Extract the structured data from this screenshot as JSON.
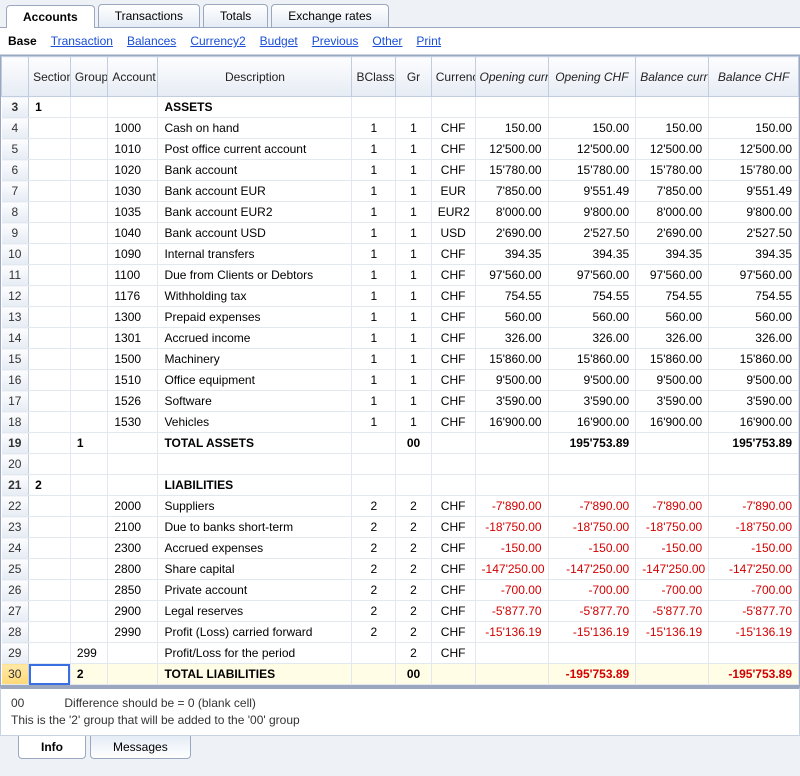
{
  "tabs": {
    "accounts": "Accounts",
    "transactions": "Transactions",
    "totals": "Totals",
    "exchange": "Exchange rates"
  },
  "subbar": {
    "base": "Base",
    "links": {
      "transaction": "Transaction",
      "balances": "Balances",
      "currency2": "Currency2",
      "budget": "Budget",
      "previous": "Previous",
      "other": "Other",
      "print": "Print"
    }
  },
  "columns": {
    "section": "Section",
    "group": "Group",
    "account": "Account",
    "description": "Description",
    "bclass": "BClass",
    "gr": "Gr",
    "currency": "Currency",
    "opening_currency": "Opening currency",
    "opening_chf": "Opening CHF",
    "balance_currency": "Balance currency",
    "balance_chf": "Balance CHF"
  },
  "rows": [
    {
      "n": "3",
      "section": "1",
      "group": "",
      "account": "",
      "desc": "ASSETS",
      "bclass": "",
      "gr": "",
      "cur": "",
      "oc": "",
      "ochf": "",
      "bc": "",
      "bchf": "",
      "bold": true
    },
    {
      "n": "4",
      "section": "",
      "group": "",
      "account": "1000",
      "desc": "Cash on hand",
      "bclass": "1",
      "gr": "1",
      "cur": "CHF",
      "oc": "150.00",
      "ochf": "150.00",
      "bc": "150.00",
      "bchf": "150.00"
    },
    {
      "n": "5",
      "section": "",
      "group": "",
      "account": "1010",
      "desc": "Post office current account",
      "bclass": "1",
      "gr": "1",
      "cur": "CHF",
      "oc": "12'500.00",
      "ochf": "12'500.00",
      "bc": "12'500.00",
      "bchf": "12'500.00"
    },
    {
      "n": "6",
      "section": "",
      "group": "",
      "account": "1020",
      "desc": "Bank account",
      "bclass": "1",
      "gr": "1",
      "cur": "CHF",
      "oc": "15'780.00",
      "ochf": "15'780.00",
      "bc": "15'780.00",
      "bchf": "15'780.00"
    },
    {
      "n": "7",
      "section": "",
      "group": "",
      "account": "1030",
      "desc": "Bank account EUR",
      "bclass": "1",
      "gr": "1",
      "cur": "EUR",
      "oc": "7'850.00",
      "ochf": "9'551.49",
      "bc": "7'850.00",
      "bchf": "9'551.49"
    },
    {
      "n": "8",
      "section": "",
      "group": "",
      "account": "1035",
      "desc": "Bank account EUR2",
      "bclass": "1",
      "gr": "1",
      "cur": "EUR2",
      "oc": "8'000.00",
      "ochf": "9'800.00",
      "bc": "8'000.00",
      "bchf": "9'800.00"
    },
    {
      "n": "9",
      "section": "",
      "group": "",
      "account": "1040",
      "desc": "Bank account USD",
      "bclass": "1",
      "gr": "1",
      "cur": "USD",
      "oc": "2'690.00",
      "ochf": "2'527.50",
      "bc": "2'690.00",
      "bchf": "2'527.50"
    },
    {
      "n": "10",
      "section": "",
      "group": "",
      "account": "1090",
      "desc": "Internal transfers",
      "bclass": "1",
      "gr": "1",
      "cur": "CHF",
      "oc": "394.35",
      "ochf": "394.35",
      "bc": "394.35",
      "bchf": "394.35"
    },
    {
      "n": "11",
      "section": "",
      "group": "",
      "account": "1100",
      "desc": "Due from Clients or Debtors",
      "bclass": "1",
      "gr": "1",
      "cur": "CHF",
      "oc": "97'560.00",
      "ochf": "97'560.00",
      "bc": "97'560.00",
      "bchf": "97'560.00"
    },
    {
      "n": "12",
      "section": "",
      "group": "",
      "account": "1176",
      "desc": "Withholding tax",
      "bclass": "1",
      "gr": "1",
      "cur": "CHF",
      "oc": "754.55",
      "ochf": "754.55",
      "bc": "754.55",
      "bchf": "754.55"
    },
    {
      "n": "13",
      "section": "",
      "group": "",
      "account": "1300",
      "desc": "Prepaid expenses",
      "bclass": "1",
      "gr": "1",
      "cur": "CHF",
      "oc": "560.00",
      "ochf": "560.00",
      "bc": "560.00",
      "bchf": "560.00"
    },
    {
      "n": "14",
      "section": "",
      "group": "",
      "account": "1301",
      "desc": "Accrued income",
      "bclass": "1",
      "gr": "1",
      "cur": "CHF",
      "oc": "326.00",
      "ochf": "326.00",
      "bc": "326.00",
      "bchf": "326.00"
    },
    {
      "n": "15",
      "section": "",
      "group": "",
      "account": "1500",
      "desc": "Machinery",
      "bclass": "1",
      "gr": "1",
      "cur": "CHF",
      "oc": "15'860.00",
      "ochf": "15'860.00",
      "bc": "15'860.00",
      "bchf": "15'860.00"
    },
    {
      "n": "16",
      "section": "",
      "group": "",
      "account": "1510",
      "desc": "Office equipment",
      "bclass": "1",
      "gr": "1",
      "cur": "CHF",
      "oc": "9'500.00",
      "ochf": "9'500.00",
      "bc": "9'500.00",
      "bchf": "9'500.00"
    },
    {
      "n": "17",
      "section": "",
      "group": "",
      "account": "1526",
      "desc": "Software",
      "bclass": "1",
      "gr": "1",
      "cur": "CHF",
      "oc": "3'590.00",
      "ochf": "3'590.00",
      "bc": "3'590.00",
      "bchf": "3'590.00"
    },
    {
      "n": "18",
      "section": "",
      "group": "",
      "account": "1530",
      "desc": "Vehicles",
      "bclass": "1",
      "gr": "1",
      "cur": "CHF",
      "oc": "16'900.00",
      "ochf": "16'900.00",
      "bc": "16'900.00",
      "bchf": "16'900.00"
    },
    {
      "n": "19",
      "section": "",
      "group": "1",
      "account": "",
      "desc": "TOTAL ASSETS",
      "bclass": "",
      "gr": "00",
      "cur": "",
      "oc": "",
      "ochf": "195'753.89",
      "bc": "",
      "bchf": "195'753.89",
      "bold": true
    },
    {
      "n": "20",
      "section": "",
      "group": "",
      "account": "",
      "desc": "",
      "bclass": "",
      "gr": "",
      "cur": "",
      "oc": "",
      "ochf": "",
      "bc": "",
      "bchf": ""
    },
    {
      "n": "21",
      "section": "2",
      "group": "",
      "account": "",
      "desc": "LIABILITIES",
      "bclass": "",
      "gr": "",
      "cur": "",
      "oc": "",
      "ochf": "",
      "bc": "",
      "bchf": "",
      "bold": true
    },
    {
      "n": "22",
      "section": "",
      "group": "",
      "account": "2000",
      "desc": "Suppliers",
      "bclass": "2",
      "gr": "2",
      "cur": "CHF",
      "oc": "-7'890.00",
      "ochf": "-7'890.00",
      "bc": "-7'890.00",
      "bchf": "-7'890.00",
      "neg": true
    },
    {
      "n": "23",
      "section": "",
      "group": "",
      "account": "2100",
      "desc": "Due to banks short-term",
      "bclass": "2",
      "gr": "2",
      "cur": "CHF",
      "oc": "-18'750.00",
      "ochf": "-18'750.00",
      "bc": "-18'750.00",
      "bchf": "-18'750.00",
      "neg": true
    },
    {
      "n": "24",
      "section": "",
      "group": "",
      "account": "2300",
      "desc": "Accrued expenses",
      "bclass": "2",
      "gr": "2",
      "cur": "CHF",
      "oc": "-150.00",
      "ochf": "-150.00",
      "bc": "-150.00",
      "bchf": "-150.00",
      "neg": true
    },
    {
      "n": "25",
      "section": "",
      "group": "",
      "account": "2800",
      "desc": "Share capital",
      "bclass": "2",
      "gr": "2",
      "cur": "CHF",
      "oc": "-147'250.00",
      "ochf": "-147'250.00",
      "bc": "-147'250.00",
      "bchf": "-147'250.00",
      "neg": true
    },
    {
      "n": "26",
      "section": "",
      "group": "",
      "account": "2850",
      "desc": "Private account",
      "bclass": "2",
      "gr": "2",
      "cur": "CHF",
      "oc": "-700.00",
      "ochf": "-700.00",
      "bc": "-700.00",
      "bchf": "-700.00",
      "neg": true
    },
    {
      "n": "27",
      "section": "",
      "group": "",
      "account": "2900",
      "desc": "Legal reserves",
      "bclass": "2",
      "gr": "2",
      "cur": "CHF",
      "oc": "-5'877.70",
      "ochf": "-5'877.70",
      "bc": "-5'877.70",
      "bchf": "-5'877.70",
      "neg": true
    },
    {
      "n": "28",
      "section": "",
      "group": "",
      "account": "2990",
      "desc": "Profit (Loss) carried forward",
      "bclass": "2",
      "gr": "2",
      "cur": "CHF",
      "oc": "-15'136.19",
      "ochf": "-15'136.19",
      "bc": "-15'136.19",
      "bchf": "-15'136.19",
      "neg": true
    },
    {
      "n": "29",
      "section": "",
      "group": "299",
      "account": "",
      "desc": "Profit/Loss for the period",
      "bclass": "",
      "gr": "2",
      "cur": "CHF",
      "oc": "",
      "ochf": "",
      "bc": "",
      "bchf": ""
    },
    {
      "n": "30",
      "section": "",
      "group": "2",
      "account": "",
      "desc": "TOTAL LIABILITIES",
      "bclass": "",
      "gr": "00",
      "cur": "",
      "oc": "",
      "ochf": "-195'753.89",
      "bc": "",
      "bchf": "-195'753.89",
      "bold": true,
      "neg": true,
      "sel": true
    }
  ],
  "info": {
    "line1": "00            Difference should be = 0 (blank cell)",
    "line2": "This is the '2' group that will be added to the '00' group"
  },
  "bottom_tabs": {
    "info": "Info",
    "messages": "Messages"
  }
}
